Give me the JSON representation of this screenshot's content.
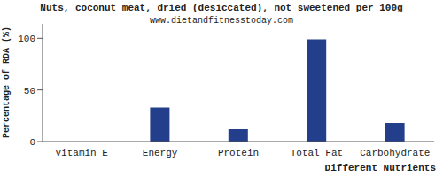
{
  "chart_data": {
    "type": "bar",
    "title": "Nuts, coconut meat, dried (desiccated), not sweetened per 100g",
    "subtitle": "www.dietandfitnesstoday.com",
    "x_label": "Different Nutrients",
    "y_label": "Percentage of RDA (%)",
    "categories": [
      "Vitamin E",
      "Energy",
      "Protein",
      "Total Fat",
      "Carbohydrate"
    ],
    "values": [
      0,
      33,
      12,
      99,
      18
    ],
    "color": "#233e8b",
    "ylim": [
      0,
      114
    ],
    "yticks": [
      0,
      50,
      100
    ],
    "grid": false
  }
}
